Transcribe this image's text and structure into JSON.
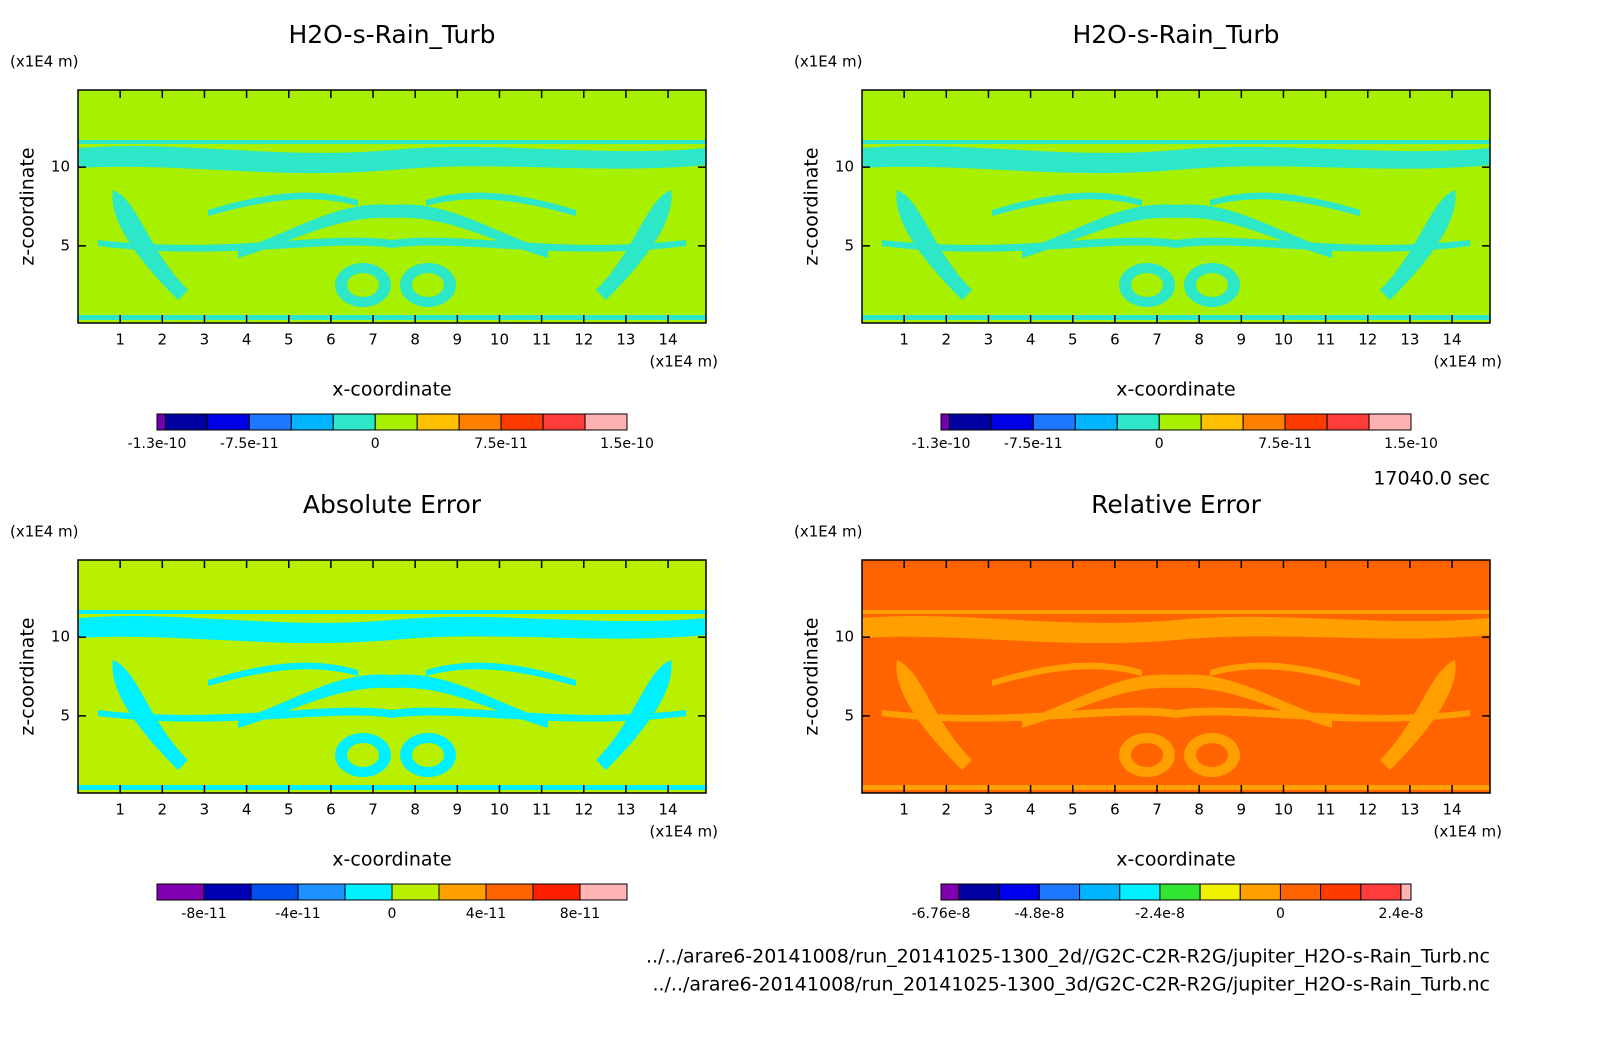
{
  "chart_data": [
    {
      "type": "contour",
      "title": "H2O-s-Rain_Turb",
      "x_label": "x-coordinate",
      "y_label": "z-coordinate",
      "x_unit": "(x1E4 m)",
      "y_unit": "(x1E4 m)",
      "xlim": [
        0,
        14.9
      ],
      "ylim": [
        0.1,
        14.9
      ],
      "xticks": [
        1,
        2,
        3,
        4,
        5,
        6,
        7,
        8,
        9,
        10,
        11,
        12,
        13,
        14
      ],
      "yticks": [
        5,
        10
      ],
      "background_color": "#a6f000",
      "feature_color": "#2ce8c8",
      "levels": [
        -1.3e-10,
        -1.25e-10,
        -1e-10,
        -7.5e-11,
        -5e-11,
        -2.5e-11,
        0,
        2.5e-11,
        5e-11,
        7.5e-11,
        1e-10,
        1.25e-10,
        1.5e-10
      ],
      "colors": [
        "#7000b0",
        "#0000a0",
        "#0000e6",
        "#1e78ff",
        "#00b4ff",
        "#2ce8c8",
        "#a6f000",
        "#ffc000",
        "#ff8000",
        "#ff3c00",
        "#ff3c3c",
        "#ffb0b0"
      ],
      "cbar_ticks": [
        -1.3e-10,
        -7.5e-11,
        0,
        7.5e-11,
        1.5e-10
      ]
    },
    {
      "type": "contour",
      "title": "H2O-s-Rain_Turb",
      "x_label": "x-coordinate",
      "y_label": "z-coordinate",
      "x_unit": "(x1E4 m)",
      "y_unit": "(x1E4 m)",
      "xlim": [
        0,
        14.9
      ],
      "ylim": [
        0.1,
        14.9
      ],
      "xticks": [
        1,
        2,
        3,
        4,
        5,
        6,
        7,
        8,
        9,
        10,
        11,
        12,
        13,
        14
      ],
      "yticks": [
        5,
        10
      ],
      "background_color": "#a6f000",
      "feature_color": "#2ce8c8",
      "levels": [
        -1.3e-10,
        -1.25e-10,
        -1e-10,
        -7.5e-11,
        -5e-11,
        -2.5e-11,
        0,
        2.5e-11,
        5e-11,
        7.5e-11,
        1e-10,
        1.25e-10,
        1.5e-10
      ],
      "colors": [
        "#7000b0",
        "#0000a0",
        "#0000e6",
        "#1e78ff",
        "#00b4ff",
        "#2ce8c8",
        "#a6f000",
        "#ffc000",
        "#ff8000",
        "#ff3c00",
        "#ff3c3c",
        "#ffb0b0"
      ],
      "cbar_ticks": [
        -1.3e-10,
        -7.5e-11,
        0,
        7.5e-11,
        1.5e-10
      ]
    },
    {
      "type": "contour",
      "title": "Absolute Error",
      "x_label": "x-coordinate",
      "y_label": "z-coordinate",
      "x_unit": "(x1E4 m)",
      "y_unit": "(x1E4 m)",
      "xlim": [
        0,
        14.9
      ],
      "ylim": [
        0.1,
        14.9
      ],
      "xticks": [
        1,
        2,
        3,
        4,
        5,
        6,
        7,
        8,
        9,
        10,
        11,
        12,
        13,
        14
      ],
      "yticks": [
        5,
        10
      ],
      "background_color": "#b8f000",
      "feature_color": "#00f0ff",
      "levels": [
        -1e-10,
        -8e-11,
        -6e-11,
        -4e-11,
        -2e-11,
        0,
        2e-11,
        4e-11,
        6e-11,
        8e-11,
        1e-10
      ],
      "colors": [
        "#8000b0",
        "#0000b4",
        "#0050f0",
        "#1e90ff",
        "#00f0ff",
        "#b8f000",
        "#ffa000",
        "#ff6400",
        "#ff1e00",
        "#ffb4b4"
      ],
      "cbar_ticks": [
        -8e-11,
        -4e-11,
        0,
        4e-11,
        8e-11
      ]
    },
    {
      "type": "contour",
      "title": "Relative Error",
      "x_label": "x-coordinate",
      "y_label": "z-coordinate",
      "x_unit": "(x1E4 m)",
      "y_unit": "(x1E4 m)",
      "xlim": [
        0,
        14.9
      ],
      "ylim": [
        0.1,
        14.9
      ],
      "xticks": [
        1,
        2,
        3,
        4,
        5,
        6,
        7,
        8,
        9,
        10,
        11,
        12,
        13,
        14
      ],
      "yticks": [
        5,
        10
      ],
      "background_color": "#ff6400",
      "feature_color": "#ffa000",
      "levels": [
        -6.76e-08,
        -6.4e-08,
        -5.6e-08,
        -4.8e-08,
        -4e-08,
        -3.2e-08,
        -2.4e-08,
        -1.6e-08,
        -8e-09,
        0,
        8e-09,
        1.6e-08,
        2.4e-08,
        2.6e-08
      ],
      "colors": [
        "#8000b0",
        "#0000a0",
        "#0000f0",
        "#1e78ff",
        "#00b4ff",
        "#00f0ff",
        "#32e632",
        "#f0f000",
        "#ffa000",
        "#ff6400",
        "#ff3c00",
        "#ff3c3c",
        "#ffb4b4"
      ],
      "cbar_ticks": [
        -6.76e-08,
        -4.8e-08,
        -2.4e-08,
        0,
        2.4e-08
      ]
    }
  ],
  "time_label": "17040.0 sec",
  "files": [
    "../../arare6-20141008/run_20141025-1300_2d//G2C-C2R-R2G/jupiter_H2O-s-Rain_Turb.nc",
    "../../arare6-20141008/run_20141025-1300_3d/G2C-C2R-R2G/jupiter_H2O-s-Rain_Turb.nc"
  ]
}
